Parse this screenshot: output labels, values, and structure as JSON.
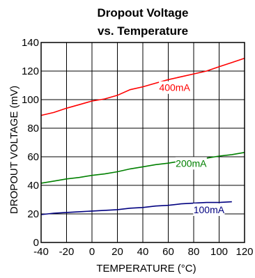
{
  "chart_data": {
    "type": "line",
    "title_line1": "Dropout Voltage",
    "title_line2": "vs. Temperature",
    "xlabel": "TEMPERATURE (°C)",
    "ylabel": "DROPOUT VOLTAGE (mV)",
    "xlim": [
      -40,
      120
    ],
    "ylim": [
      0,
      140
    ],
    "x_ticks": [
      -40,
      -20,
      0,
      20,
      40,
      60,
      80,
      100,
      120
    ],
    "y_ticks": [
      0,
      20,
      40,
      60,
      80,
      100,
      120,
      140
    ],
    "grid": true,
    "series": [
      {
        "name": "400mA",
        "color": "#ff0000",
        "x": [
          -40,
          -30,
          -20,
          -10,
          0,
          10,
          20,
          30,
          40,
          50,
          60,
          70,
          80,
          90,
          100,
          110,
          120
        ],
        "y": [
          89,
          91,
          94,
          96.5,
          99,
          100.5,
          103,
          107,
          109,
          111.5,
          114,
          116,
          118,
          120,
          123,
          126,
          129
        ]
      },
      {
        "name": "200mA",
        "color": "#008000",
        "x": [
          -40,
          -30,
          -20,
          -10,
          0,
          10,
          20,
          30,
          40,
          50,
          60,
          70,
          80,
          90,
          100,
          110,
          120
        ],
        "y": [
          41.5,
          43,
          44.5,
          45.5,
          47,
          48,
          49.5,
          51.5,
          53,
          54.5,
          55.5,
          57,
          58,
          59,
          60.5,
          61.5,
          63
        ]
      },
      {
        "name": "100mA",
        "color": "#000080",
        "x": [
          -40,
          -30,
          -20,
          -10,
          0,
          10,
          20,
          30,
          40,
          50,
          60,
          70,
          80,
          90,
          100,
          110
        ],
        "y": [
          19.5,
          20.5,
          21,
          21.5,
          22,
          22.5,
          23,
          24,
          24.5,
          25.5,
          26,
          27,
          27.5,
          28,
          28,
          28.5
        ]
      }
    ]
  }
}
